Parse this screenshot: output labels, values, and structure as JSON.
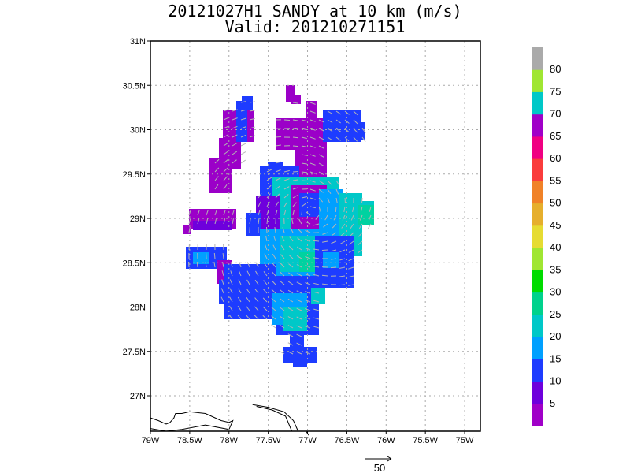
{
  "title": {
    "line1": "20121027H1 SANDY at 10 km (m/s)",
    "line2": "Valid: 201210271151"
  },
  "map": {
    "lon_range": [
      -79,
      -74.8
    ],
    "lat_range": [
      26.6,
      31
    ],
    "lon_ticks": [
      {
        "value": -79,
        "label": "79W"
      },
      {
        "value": -78.5,
        "label": "78.5W"
      },
      {
        "value": -78,
        "label": "78W"
      },
      {
        "value": -77.5,
        "label": "77.5W"
      },
      {
        "value": -77,
        "label": "77W"
      },
      {
        "value": -76.5,
        "label": "76.5W"
      },
      {
        "value": -76,
        "label": "76W"
      },
      {
        "value": -75.5,
        "label": "75.5W"
      },
      {
        "value": -75,
        "label": "75W"
      }
    ],
    "lat_ticks": [
      {
        "value": 31,
        "label": "31N"
      },
      {
        "value": 30.5,
        "label": "30.5N"
      },
      {
        "value": 30,
        "label": "30N"
      },
      {
        "value": 29.5,
        "label": "29.5N"
      },
      {
        "value": 29,
        "label": "29N"
      },
      {
        "value": 28.5,
        "label": "28.5N"
      },
      {
        "value": 28,
        "label": "28N"
      },
      {
        "value": 27.5,
        "label": "27.5N"
      },
      {
        "value": 27,
        "label": "27N"
      }
    ],
    "grid": true,
    "reference_vector_label": "50",
    "colorbar": {
      "levels": [
        0,
        5,
        10,
        15,
        20,
        25,
        30,
        35,
        40,
        45,
        50,
        55,
        60,
        65,
        70,
        75,
        80,
        85
      ],
      "labels": [
        "5",
        "10",
        "15",
        "20",
        "25",
        "30",
        "35",
        "40",
        "45",
        "50",
        "55",
        "60",
        "65",
        "70",
        "75",
        "80"
      ],
      "colors": [
        "#a000c8",
        "#6e00dc",
        "#1e3cff",
        "#00a0ff",
        "#00c8c8",
        "#00d28c",
        "#00dc00",
        "#a0e632",
        "#e6dc32",
        "#e6af2d",
        "#f08228",
        "#fa3c3c",
        "#f00082",
        "#a000c8",
        "#00c8c8",
        "#a0e632",
        "#aaaaaa"
      ]
    },
    "coastline": [
      [
        [
          -79.0,
          26.75
        ],
        [
          -78.9,
          26.72
        ],
        [
          -78.8,
          26.68
        ],
        [
          -78.75,
          26.7
        ],
        [
          -78.7,
          26.75
        ],
        [
          -78.68,
          26.8
        ],
        [
          -78.6,
          26.8
        ],
        [
          -78.5,
          26.82
        ],
        [
          -78.3,
          26.8
        ],
        [
          -78.1,
          26.72
        ],
        [
          -78.0,
          26.7
        ],
        [
          -77.95,
          26.72
        ],
        [
          -78.0,
          26.62
        ],
        [
          -78.3,
          26.67
        ],
        [
          -78.6,
          26.62
        ],
        [
          -78.8,
          26.6
        ],
        [
          -79.0,
          26.63
        ]
      ],
      [
        [
          -77.7,
          26.9
        ],
        [
          -77.5,
          26.87
        ],
        [
          -77.3,
          26.82
        ],
        [
          -77.18,
          26.72
        ],
        [
          -77.12,
          26.6
        ]
      ],
      [
        [
          -77.65,
          26.88
        ],
        [
          -77.45,
          26.84
        ],
        [
          -77.28,
          26.77
        ],
        [
          -77.2,
          26.6
        ]
      ],
      [
        [
          -77.02,
          26.6
        ],
        [
          -76.98,
          26.55
        ]
      ]
    ]
  }
}
